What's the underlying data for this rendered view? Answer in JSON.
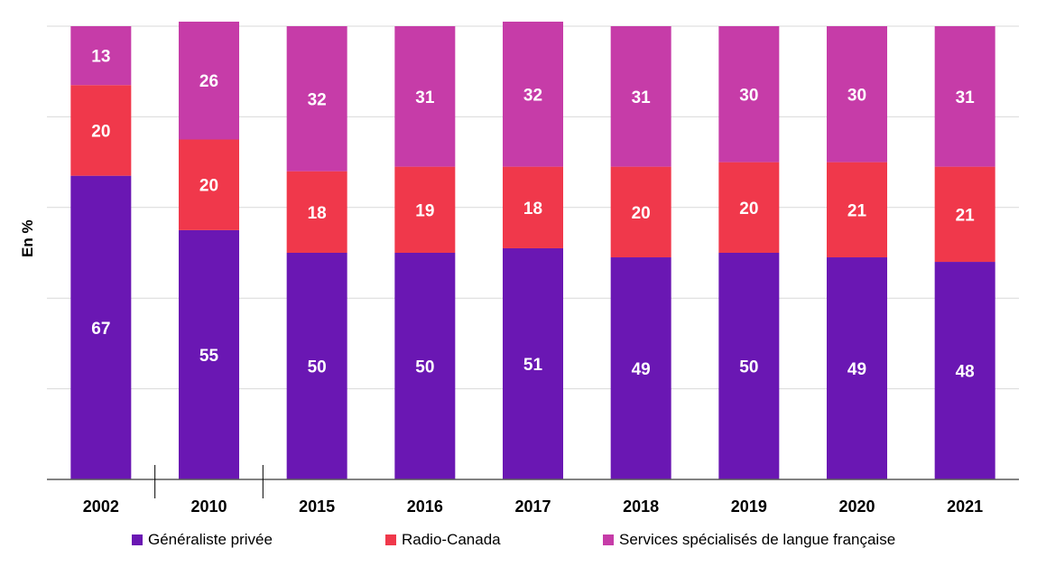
{
  "chart_data": {
    "type": "bar",
    "stacked": true,
    "categories": [
      "2002",
      "2010",
      "2015",
      "2016",
      "2017",
      "2018",
      "2019",
      "2020",
      "2021"
    ],
    "series": [
      {
        "name": "Généraliste privée",
        "color": "#6a17b3",
        "values": [
          67,
          55,
          50,
          50,
          51,
          49,
          50,
          49,
          48
        ]
      },
      {
        "name": "Radio-Canada",
        "color": "#f0384b",
        "values": [
          20,
          20,
          18,
          19,
          18,
          20,
          20,
          21,
          21
        ]
      },
      {
        "name": "Services spécialisés de langue française",
        "color": "#c63ca8",
        "values": [
          13,
          26,
          32,
          31,
          32,
          31,
          30,
          30,
          31
        ]
      }
    ],
    "ylabel": "En %",
    "xlabel": "",
    "ylim": [
      0,
      100
    ],
    "grid": true,
    "legend_position": "bottom",
    "axis_breaks_after": [
      "2002",
      "2010"
    ]
  }
}
